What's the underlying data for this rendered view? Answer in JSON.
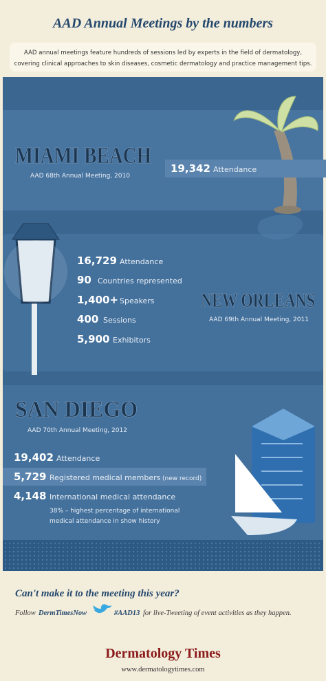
{
  "header": {
    "title": "AAD Annual Meetings by the numbers",
    "intro": [
      "AAD annual meetings feature hundreds of sessions led by experts in the field of dermatology,",
      "covering clinical approaches to skin diseases, cosmetic dermatology and practice management tips."
    ]
  },
  "sections": [
    {
      "city": "MIAMI BEACH",
      "meeting": "AAD 68th Annual Meeting, 2010",
      "stats": [
        {
          "value": "19,342",
          "label": "Attendance"
        }
      ]
    },
    {
      "city": "NEW ORLEANS",
      "meeting": "AAD 69th Annual Meeting, 2011",
      "stats": [
        {
          "value": "16,729",
          "label": "Attendance"
        },
        {
          "value": "90",
          "label": "Countries represented"
        },
        {
          "value": "1,400+",
          "label": "Speakers"
        },
        {
          "value": "400",
          "label": "Sessions"
        },
        {
          "value": "5,900",
          "label": "Exhibitors"
        }
      ]
    },
    {
      "city": "SAN DIEGO",
      "meeting": "AAD 70th Annual Meeting, 2012",
      "stats": [
        {
          "value": "19,402",
          "label": "Attendance"
        },
        {
          "value": "5,729",
          "label": "Registered medical members",
          "note": "(new record)"
        },
        {
          "value": "4,148",
          "label": "International medical attendance"
        }
      ],
      "note": [
        "38% – highest percentage of international",
        "medical attendance in show history"
      ]
    }
  ],
  "footer": {
    "question": "Can't make it to the meeting this year?",
    "follow": "Follow",
    "handle": "DermTimesNow",
    "hashtag": "#AAD13",
    "rest": "for live-Tweeting of event activities as they happen."
  },
  "brand": {
    "name": "Dermatology Times",
    "url": "www.dermatologytimes.com"
  }
}
